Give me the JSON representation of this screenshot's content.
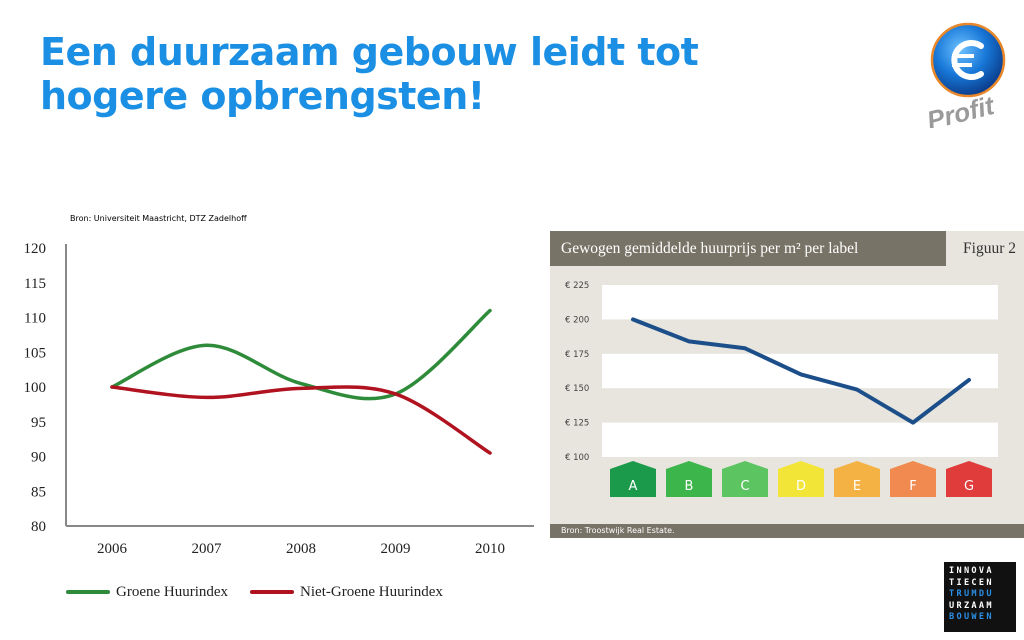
{
  "slide": {
    "title_line1": "Een duurzaam gebouw leidt tot",
    "title_line2": "hogere opbrengsten!",
    "logo_text": "Profit",
    "innovatie_logo": [
      "INNOVA",
      "TIECEN",
      "TRUMDU",
      "URZAAM",
      "BOUWEN"
    ]
  },
  "colors": {
    "title": "#1a8fe3",
    "green": "#2e8b3a",
    "red": "#b0121f",
    "blue_line": "#1c4f8a",
    "panel_bg": "#e7e5dd",
    "panel_header": "#787367"
  },
  "chart1_source": "Bron: Universiteit Maastricht, DTZ Zadelhoff",
  "chart2_header": {
    "title": "Gewogen gemiddelde huurprijs per m² per label",
    "figure": "Figuur 2",
    "source": "Bron: Troostwijk Real Estate."
  },
  "chart_data": [
    {
      "type": "line",
      "title": "",
      "x": [
        "2006",
        "2007",
        "2008",
        "2009",
        "2010"
      ],
      "ylim": [
        80,
        120
      ],
      "yticks": [
        "120",
        "115",
        "110",
        "105",
        "100",
        "95",
        "90",
        "85",
        "80"
      ],
      "grid": false,
      "legend": "bottom-left",
      "series": [
        {
          "name": "Groene Huurindex",
          "values": [
            100,
            106,
            100.5,
            99,
            111
          ],
          "color": "#2e8b3a"
        },
        {
          "name": "Niet-Groene Huurindex",
          "values": [
            100,
            98.5,
            99.8,
            99,
            90.5
          ],
          "color": "#b0121f"
        }
      ]
    },
    {
      "type": "line",
      "title": "Gewogen gemiddelde huurprijs per m² per label",
      "categories": [
        "A",
        "B",
        "C",
        "D",
        "E",
        "F",
        "G"
      ],
      "category_colors": [
        "#1a9a4a",
        "#3cb54a",
        "#5cc460",
        "#f2e538",
        "#f5b244",
        "#f08a50",
        "#e03c3c"
      ],
      "ylim": [
        100,
        225
      ],
      "yticks": [
        "€ 225",
        "€ 200",
        "€ 175",
        "€ 150",
        "€ 125",
        "€ 100"
      ],
      "series": [
        {
          "values": [
            200,
            184,
            179,
            160,
            149,
            125,
            156
          ],
          "color": "#1c4f8a"
        }
      ]
    }
  ]
}
